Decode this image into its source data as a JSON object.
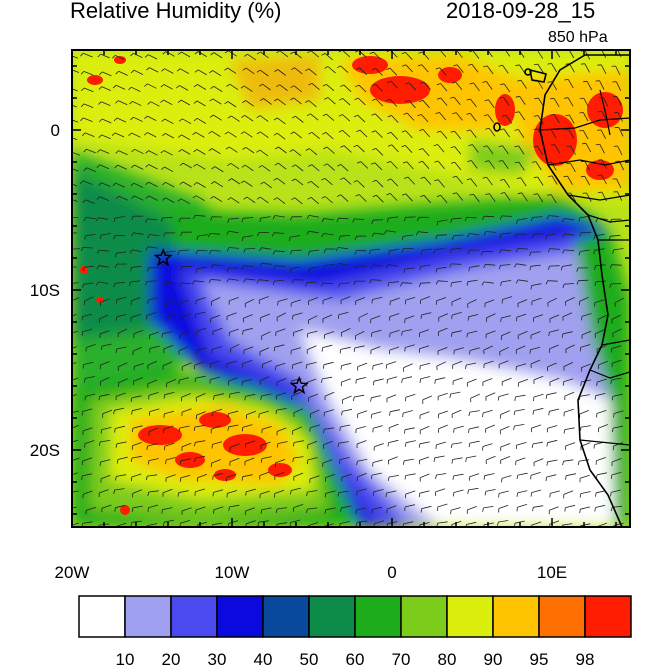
{
  "title_left": "Relative Humidity (%)",
  "title_right": "2018-09-28_15",
  "level": "850 hPa",
  "lon_ticks": [
    {
      "label": "20W",
      "value": -20
    },
    {
      "label": "10W",
      "value": -10
    },
    {
      "label": "0",
      "value": 0
    },
    {
      "label": "10E",
      "value": 10
    }
  ],
  "lat_ticks": [
    {
      "label": "0",
      "value": 0
    },
    {
      "label": "10S",
      "value": -10
    },
    {
      "label": "20S",
      "value": -20
    }
  ],
  "colorbar": {
    "colors": [
      "#ffffff",
      "#a0a0f0",
      "#4a4aee",
      "#0a0ade",
      "#0a4a9c",
      "#0c8c48",
      "#1cac1c",
      "#7ccc1c",
      "#dcee0c",
      "#ffc400",
      "#ff7000",
      "#ff1c00"
    ],
    "labels": [
      "10",
      "20",
      "30",
      "40",
      "50",
      "60",
      "70",
      "80",
      "90",
      "95",
      "98"
    ]
  },
  "markers": [
    {
      "name": "star-marker-west",
      "lon": -14.3,
      "lat": -8.0
    },
    {
      "name": "star-marker-south",
      "lon": -5.8,
      "lat": -16.0
    }
  ]
}
